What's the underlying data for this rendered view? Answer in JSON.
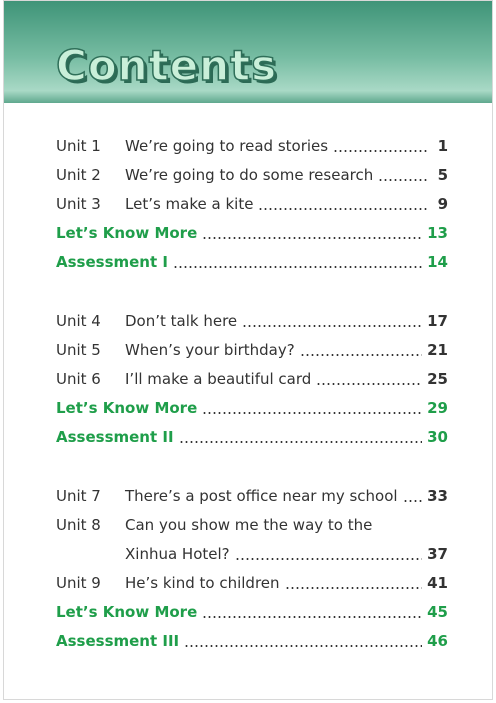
{
  "header": {
    "title": "Contents"
  },
  "sections": [
    {
      "entries": [
        {
          "unit": "Unit 1",
          "lines": [
            "We’re going to read stories"
          ],
          "page": "1"
        },
        {
          "unit": "Unit 2",
          "lines": [
            "We’re going to do some research"
          ],
          "page": "5"
        },
        {
          "unit": "Unit 3",
          "lines": [
            "Let’s make a kite"
          ],
          "page": "9"
        },
        {
          "lines": [
            "Let’s Know More"
          ],
          "page": "13"
        },
        {
          "lines": [
            "Assessment I"
          ],
          "page": "14"
        }
      ]
    },
    {
      "entries": [
        {
          "unit": "Unit 4",
          "lines": [
            "Don’t talk here"
          ],
          "page": "17"
        },
        {
          "unit": "Unit 5",
          "lines": [
            "When’s your birthday?"
          ],
          "page": "21"
        },
        {
          "unit": "Unit 6",
          "lines": [
            "I’ll make a beautiful card"
          ],
          "page": "25"
        },
        {
          "lines": [
            "Let’s Know More"
          ],
          "page": "29"
        },
        {
          "lines": [
            "Assessment II"
          ],
          "page": "30"
        }
      ]
    },
    {
      "entries": [
        {
          "unit": "Unit 7",
          "lines": [
            "There’s a post office near my school"
          ],
          "page": "33"
        },
        {
          "unit": "Unit 8",
          "lines": [
            "Can you show me the way to the",
            "Xinhua Hotel?"
          ],
          "page": "37"
        },
        {
          "unit": "Unit 9",
          "lines": [
            "He’s kind to children"
          ],
          "page": "41"
        },
        {
          "lines": [
            "Let’s Know More"
          ],
          "page": "45"
        },
        {
          "lines": [
            "Assessment III"
          ],
          "page": "46"
        }
      ]
    }
  ]
}
